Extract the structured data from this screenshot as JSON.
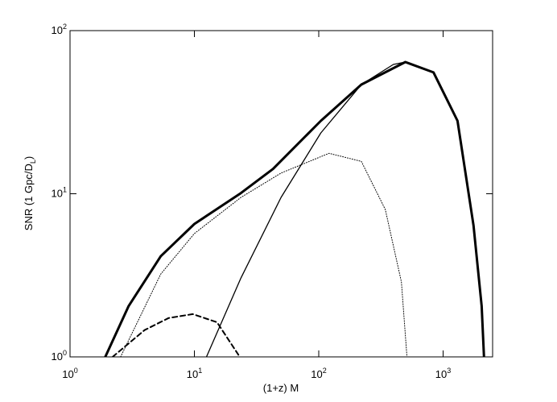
{
  "chart_data": {
    "type": "line",
    "xlabel": "(1+z) M",
    "ylabel": "SNR (1 Gpc/D_L)",
    "xscale": "log",
    "yscale": "log",
    "xlim": [
      1,
      2500
    ],
    "ylim": [
      1,
      100
    ],
    "xticks": [
      {
        "value": 1,
        "label": "10^0"
      },
      {
        "value": 10,
        "label": "10^1"
      },
      {
        "value": 100,
        "label": "10^2"
      },
      {
        "value": 1000,
        "label": "10^3"
      }
    ],
    "yticks": [
      {
        "value": 1,
        "label": "10^0"
      },
      {
        "value": 10,
        "label": "10^1"
      },
      {
        "value": 100,
        "label": "10^2"
      }
    ],
    "series": [
      {
        "color": "#000000",
        "line_style": "solid",
        "line_width": 3,
        "x": [
          1.92,
          2.96,
          5.36,
          10,
          23.7,
          42.9,
          104,
          220,
          497,
          837,
          1306,
          1757,
          2040,
          2133
        ],
        "values": [
          1,
          2.05,
          4.14,
          6.53,
          10.1,
          14.2,
          28,
          46.7,
          64.2,
          55.4,
          28,
          6.38,
          2.05,
          1
        ]
      },
      {
        "color": "#000000",
        "line_style": "dotted",
        "line_width": 1,
        "x": [
          2.55,
          5.36,
          10,
          23.7,
          49.8,
          121,
          220,
          343,
          462,
          512
        ],
        "values": [
          1,
          3.22,
          5.7,
          9.5,
          13.4,
          17.7,
          15.8,
          8,
          2.88,
          1
        ]
      },
      {
        "color": "#000000",
        "line_style": "dashed",
        "line_width": 2,
        "x": [
          2.2,
          3.98,
          6.2,
          9.7,
          15.2,
          22.6
        ],
        "values": [
          1,
          1.46,
          1.73,
          1.83,
          1.63,
          1.03
        ]
      },
      {
        "color": "#000000",
        "line_style": "solid",
        "line_width": 1.3,
        "x": [
          12.5,
          23.7,
          49.8,
          104,
          220,
          398,
          497
        ],
        "values": [
          1,
          3.05,
          9.5,
          23.6,
          46.7,
          62,
          64.2
        ]
      }
    ]
  }
}
